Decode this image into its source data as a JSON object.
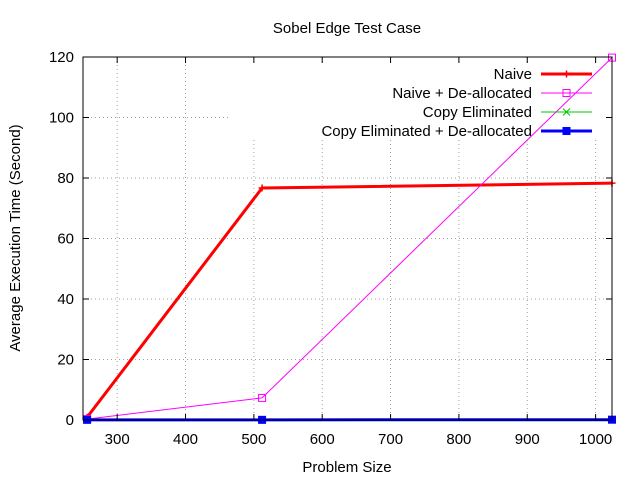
{
  "chart_data": {
    "type": "line",
    "title": "Sobel Edge Test Case",
    "xlabel": "Problem Size",
    "ylabel": "Average Execution Time (Second)",
    "xlim": [
      250,
      1024
    ],
    "ylim": [
      0,
      120
    ],
    "xticks": [
      300,
      400,
      500,
      600,
      700,
      800,
      900,
      1000
    ],
    "yticks": [
      0,
      20,
      40,
      60,
      80,
      100,
      120
    ],
    "grid": true,
    "legend_position": "top-right",
    "series": [
      {
        "name": "Naive",
        "color": "#ff0000",
        "marker": "plus",
        "line_style": "thick",
        "points": [
          [
            256,
            0.9
          ],
          [
            512,
            76.7
          ],
          [
            1024,
            78.3
          ]
        ]
      },
      {
        "name": "Naive + De-allocated",
        "color": "#ff00ff",
        "marker": "open-square",
        "line_style": "thin",
        "points": [
          [
            256,
            0.3
          ],
          [
            512,
            7.3
          ],
          [
            1024,
            119.8
          ]
        ]
      },
      {
        "name": "Copy Eliminated",
        "color": "#00c800",
        "marker": "cross",
        "line_style": "thin",
        "points": [
          [
            256,
            0.1
          ],
          [
            512,
            0.1
          ],
          [
            1024,
            0.2
          ]
        ]
      },
      {
        "name": "Copy Eliminated + De-allocated",
        "color": "#0000ff",
        "marker": "filled-square",
        "line_style": "thick",
        "points": [
          [
            256,
            0.05
          ],
          [
            512,
            0.05
          ],
          [
            1024,
            0.1
          ]
        ]
      }
    ]
  }
}
